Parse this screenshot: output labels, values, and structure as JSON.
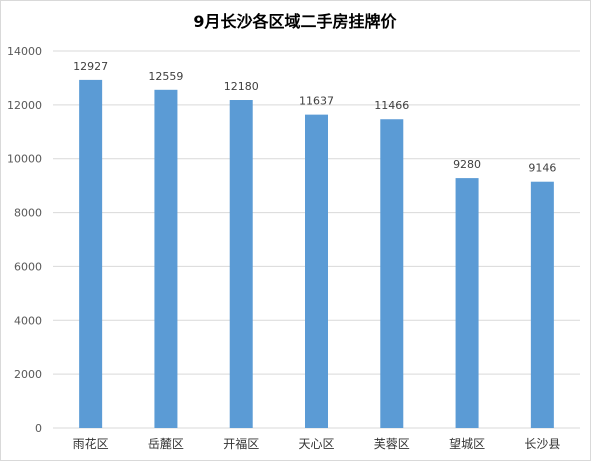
{
  "chart_data": {
    "type": "bar",
    "title": "9月长沙各区域二手房挂牌价",
    "xlabel": "",
    "ylabel": "",
    "categories": [
      "雨花区",
      "岳麓区",
      "开福区",
      "天心区",
      "芙蓉区",
      "望城区",
      "长沙县"
    ],
    "values": [
      12927,
      12559,
      12180,
      11637,
      11466,
      9280,
      9146
    ],
    "data_labels": [
      "12927",
      "12559",
      "12180",
      "11637",
      "11466",
      "9280",
      "9146"
    ],
    "ylim": [
      0,
      14000
    ],
    "yticks": [
      0,
      2000,
      4000,
      6000,
      8000,
      10000,
      12000,
      14000
    ],
    "ytick_labels": [
      "0",
      "2000",
      "4000",
      "6000",
      "8000",
      "10000",
      "12000",
      "14000"
    ],
    "grid": true,
    "legend": "none",
    "bar_color": "#5b9bd5",
    "grid_color": "#d9d9d9"
  }
}
